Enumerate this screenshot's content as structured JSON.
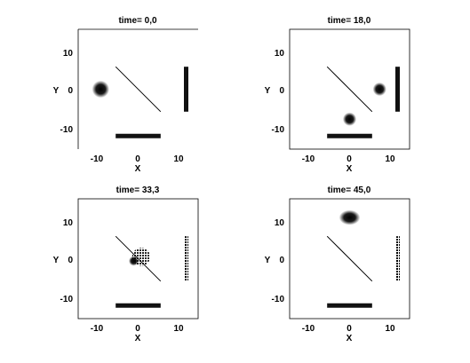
{
  "chart_data": [
    {
      "type": "scatter",
      "title": "time= 0,0",
      "xlabel": "X",
      "ylabel": "Y",
      "xlim": [
        -16,
        16
      ],
      "ylim": [
        -16,
        16
      ],
      "xticks": [
        "-10",
        "0",
        "10"
      ],
      "yticks": [
        "10",
        "0",
        "-10"
      ],
      "frame": "top-left",
      "line": {
        "x": [
          -6,
          6
        ],
        "y": [
          6,
          -6
        ]
      },
      "bottom_bar": {
        "x": [
          -6,
          6
        ],
        "y": -12.5
      },
      "right_bar": {
        "x": 12.8,
        "y": [
          -6,
          6
        ]
      },
      "blobs": [
        {
          "x": -10,
          "y": 0,
          "rx": 2.3,
          "ry": 2.3,
          "kind": "soft"
        }
      ]
    },
    {
      "type": "scatter",
      "title": "time= 18,0",
      "xlabel": "X",
      "ylabel": "Y",
      "xlim": [
        -16,
        16
      ],
      "ylim": [
        -16,
        16
      ],
      "xticks": [
        "-10",
        "0",
        "10"
      ],
      "yticks": [
        "10",
        "0",
        "-10"
      ],
      "frame": "box",
      "line": {
        "x": [
          -6,
          6
        ],
        "y": [
          6,
          -6
        ]
      },
      "bottom_bar": {
        "x": [
          -6,
          6
        ],
        "y": -12.5
      },
      "right_bar": {
        "x": 12.8,
        "y": [
          -6,
          6
        ]
      },
      "blobs": [
        {
          "x": 0,
          "y": -8,
          "rx": 1.8,
          "ry": 1.8,
          "kind": "soft"
        },
        {
          "x": 8,
          "y": 0,
          "rx": 1.8,
          "ry": 1.8,
          "kind": "soft"
        }
      ]
    },
    {
      "type": "scatter",
      "title": "time= 33,3",
      "xlabel": "X",
      "ylabel": "Y",
      "xlim": [
        -16,
        16
      ],
      "ylim": [
        -16,
        16
      ],
      "xticks": [
        "-10",
        "0",
        "10"
      ],
      "yticks": [
        "10",
        "0",
        "-10"
      ],
      "frame": "box",
      "line": {
        "x": [
          -6,
          6
        ],
        "y": [
          6,
          -6
        ]
      },
      "bottom_bar": {
        "x": [
          -6,
          6
        ],
        "y": -12.5
      },
      "right_bar": {
        "x": 12.8,
        "y": [
          -6,
          6
        ],
        "kind": "dotted"
      },
      "blobs": [
        {
          "x": 0.8,
          "y": 0.5,
          "rx": 2.4,
          "ry": 2.4,
          "kind": "speckle"
        },
        {
          "x": -1.2,
          "y": -0.6,
          "rx": 1.3,
          "ry": 1.3,
          "kind": "soft"
        }
      ]
    },
    {
      "type": "scatter",
      "title": "time= 45,0",
      "xlabel": "X",
      "ylabel": "Y",
      "xlim": [
        -16,
        16
      ],
      "ylim": [
        -16,
        16
      ],
      "xticks": [
        "-10",
        "0",
        "10"
      ],
      "yticks": [
        "10",
        "0",
        "-10"
      ],
      "frame": "box",
      "line": {
        "x": [
          -6,
          6
        ],
        "y": [
          6,
          -6
        ]
      },
      "bottom_bar": {
        "x": [
          -6,
          6
        ],
        "y": -12.5
      },
      "right_bar": {
        "x": 12.8,
        "y": [
          -6,
          6
        ],
        "kind": "dotted"
      },
      "blobs": [
        {
          "x": 0,
          "y": 11,
          "rx": 2.8,
          "ry": 2.0,
          "kind": "soft"
        }
      ]
    }
  ]
}
